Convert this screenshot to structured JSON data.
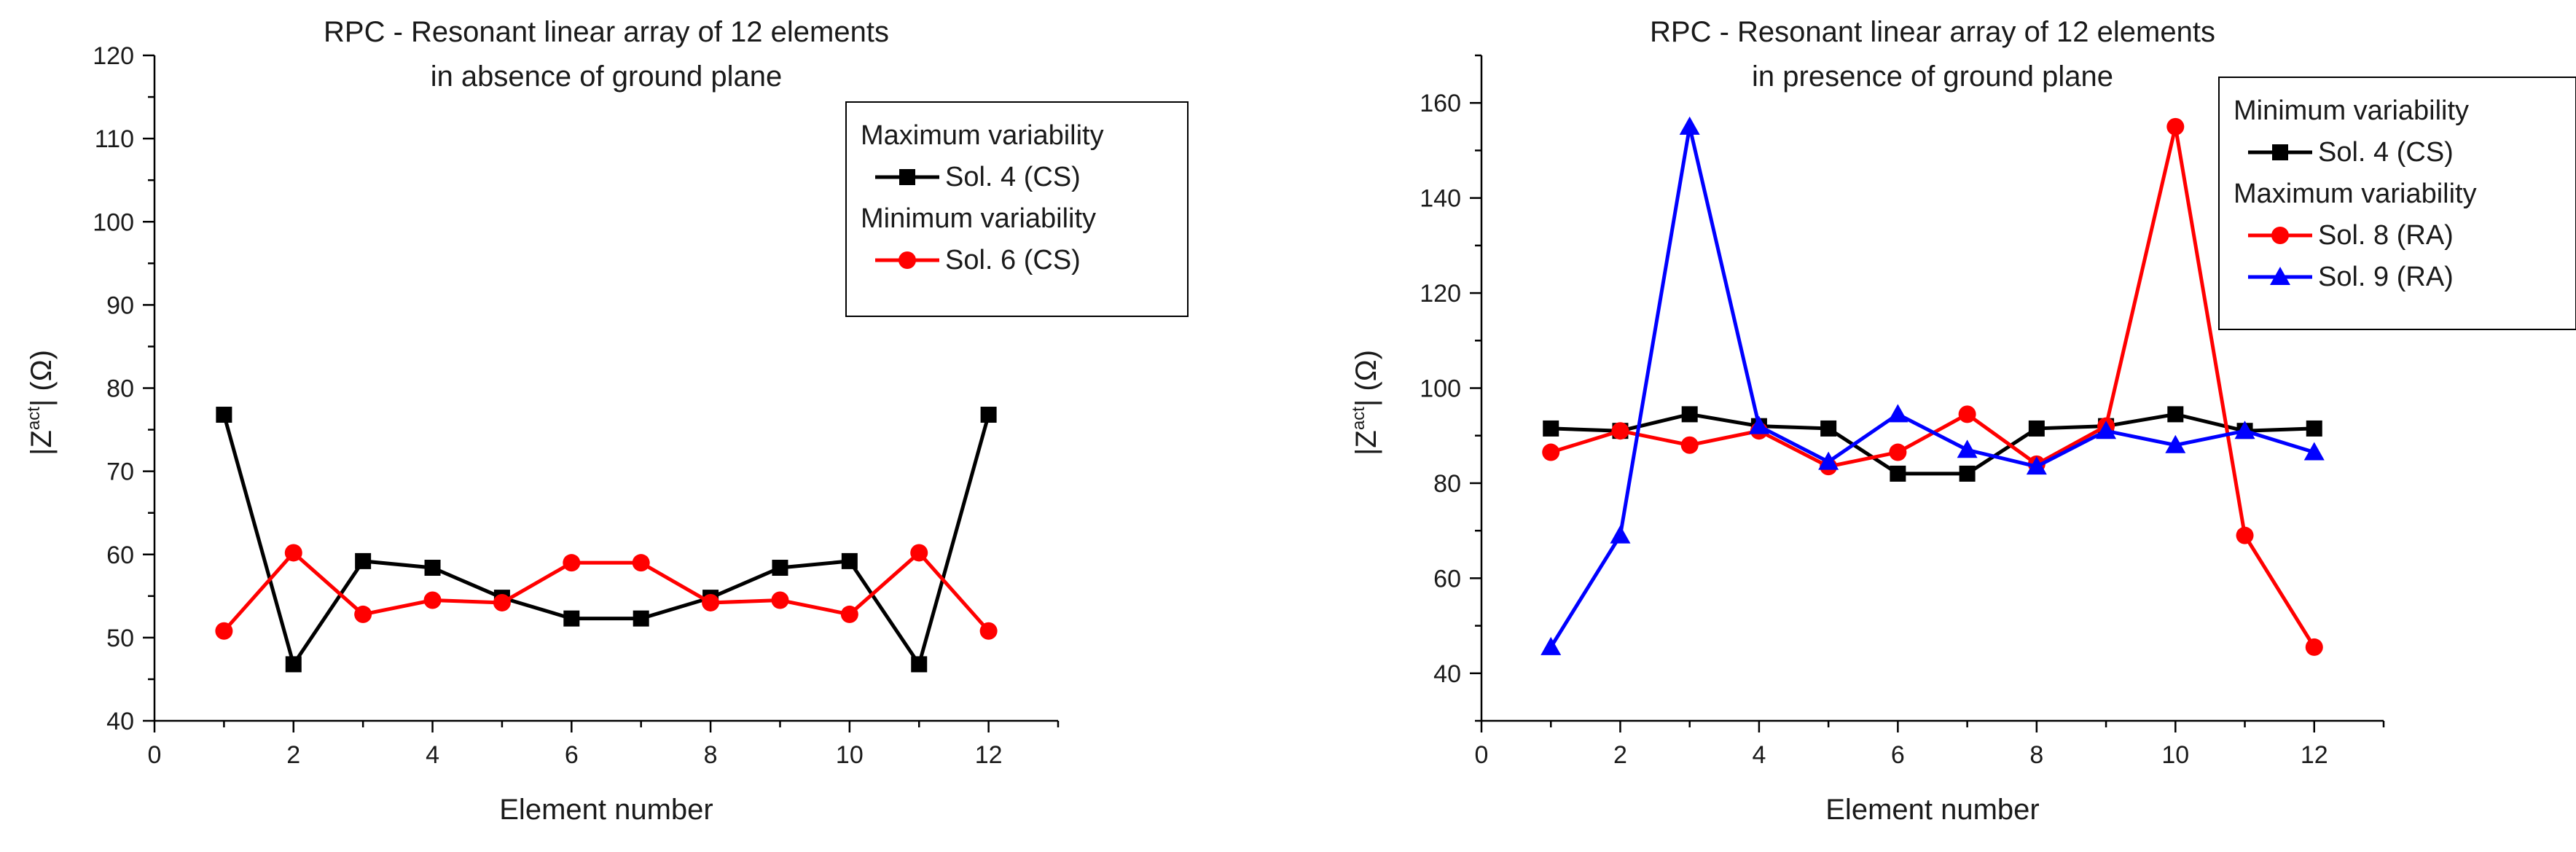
{
  "chart_data": [
    {
      "type": "line",
      "title": "RPC - Resonant linear array of 12 elements",
      "subtitle": "in absence of ground plane",
      "xlabel": "Element number",
      "ylabel": "|Z^act| (Ω)",
      "xlim": [
        0,
        13
      ],
      "ylim": [
        40,
        120
      ],
      "xticks": [
        0,
        2,
        4,
        6,
        8,
        10,
        12
      ],
      "yticks": [
        40,
        50,
        60,
        70,
        80,
        90,
        100,
        110,
        120
      ],
      "grid": false,
      "legend_position": "top-right",
      "legend": [
        {
          "kind": "heading",
          "text": "Maximum variability"
        },
        {
          "kind": "series",
          "series_index": 0
        },
        {
          "kind": "heading",
          "text": "Minimum variability"
        },
        {
          "kind": "series",
          "series_index": 1
        }
      ],
      "x": [
        1,
        2,
        3,
        4,
        5,
        6,
        7,
        8,
        9,
        10,
        11,
        12
      ],
      "series": [
        {
          "name": "Sol. 4 (CS)",
          "color": "#000000",
          "marker": "square",
          "values": [
            76.8,
            46.8,
            59.2,
            58.4,
            54.8,
            52.3,
            52.3,
            54.8,
            58.4,
            59.2,
            46.8,
            76.8
          ]
        },
        {
          "name": "Sol. 6 (CS)",
          "color": "#ff0000",
          "marker": "circle",
          "values": [
            50.8,
            60.2,
            52.8,
            54.5,
            54.2,
            59.0,
            59.0,
            54.2,
            54.5,
            52.8,
            60.2,
            50.8
          ]
        }
      ]
    },
    {
      "type": "line",
      "title": "RPC - Resonant linear array of 12 elements",
      "subtitle": "in presence of ground plane",
      "xlabel": "Element number",
      "ylabel": "|Z^act| (Ω)",
      "xlim": [
        0,
        13
      ],
      "ylim": [
        30,
        170
      ],
      "xticks": [
        0,
        2,
        4,
        6,
        8,
        10,
        12
      ],
      "yticks": [
        40,
        60,
        80,
        100,
        120,
        140,
        160
      ],
      "grid": false,
      "legend_position": "top-right",
      "legend": [
        {
          "kind": "heading",
          "text": "Minimum variability"
        },
        {
          "kind": "series",
          "series_index": 0
        },
        {
          "kind": "heading",
          "text": "Maximum variability"
        },
        {
          "kind": "series",
          "series_index": 1
        },
        {
          "kind": "series",
          "series_index": 2
        }
      ],
      "x": [
        1,
        2,
        3,
        4,
        5,
        6,
        7,
        8,
        9,
        10,
        11,
        12
      ],
      "series": [
        {
          "name": "Sol. 4 (CS)",
          "color": "#000000",
          "marker": "square",
          "values": [
            91.5,
            91.0,
            94.5,
            92.0,
            91.5,
            82.0,
            82.0,
            91.5,
            92.0,
            94.5,
            91.0,
            91.5
          ]
        },
        {
          "name": "Sol. 8 (RA)",
          "color": "#ff0000",
          "marker": "circle",
          "values": [
            86.5,
            91.0,
            88.0,
            91.0,
            83.5,
            86.5,
            94.5,
            84.0,
            92.0,
            155.0,
            69.0,
            45.5
          ]
        },
        {
          "name": "Sol. 9 (RA)",
          "color": "#0000ff",
          "marker": "triangle",
          "values": [
            45.5,
            69.0,
            155.0,
            92.0,
            84.5,
            94.5,
            87.0,
            83.5,
            91.0,
            88.0,
            91.0,
            86.5
          ]
        }
      ]
    }
  ]
}
